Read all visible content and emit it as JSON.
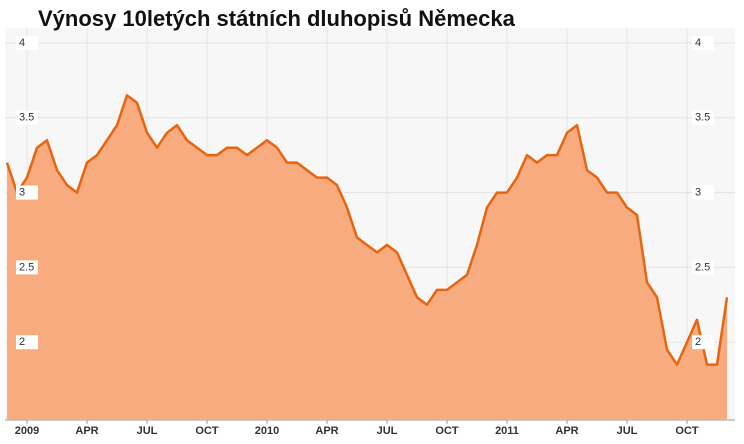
{
  "chart_data": {
    "type": "area",
    "title": "Výnosy 10letých státních dluhopisů Německa",
    "categories": [
      null,
      null,
      "2009",
      null,
      null,
      null,
      null,
      null,
      "APR",
      null,
      null,
      null,
      null,
      null,
      "JUL",
      null,
      null,
      null,
      null,
      null,
      "OCT",
      null,
      null,
      null,
      null,
      null,
      "2010",
      null,
      null,
      null,
      null,
      null,
      "APR",
      null,
      null,
      null,
      null,
      null,
      "JUL",
      null,
      null,
      null,
      null,
      null,
      "OCT",
      null,
      null,
      null,
      null,
      null,
      "2011",
      null,
      null,
      null,
      null,
      null,
      "APR",
      null,
      null,
      null,
      null,
      null,
      "JUL",
      null,
      null,
      null,
      null,
      null,
      "OCT",
      null,
      null,
      null,
      null
    ],
    "values": [
      3.2,
      3.0,
      3.1,
      3.3,
      3.35,
      3.15,
      3.05,
      3.0,
      3.2,
      3.25,
      3.35,
      3.45,
      3.65,
      3.6,
      3.4,
      3.3,
      3.4,
      3.45,
      3.35,
      3.3,
      3.25,
      3.25,
      3.3,
      3.3,
      3.25,
      3.3,
      3.35,
      3.3,
      3.2,
      3.2,
      3.15,
      3.1,
      3.1,
      3.05,
      2.9,
      2.7,
      2.65,
      2.6,
      2.65,
      2.6,
      2.45,
      2.3,
      2.25,
      2.35,
      2.35,
      2.4,
      2.45,
      2.65,
      2.9,
      3.0,
      3.0,
      3.1,
      3.25,
      3.2,
      3.25,
      3.25,
      3.4,
      3.45,
      3.15,
      3.1,
      3.0,
      3.0,
      2.9,
      2.85,
      2.4,
      2.3,
      1.95,
      1.85,
      2.0,
      2.15,
      1.85,
      1.85,
      2.3
    ],
    "color": "#e8650f",
    "fill": "#f9ab80",
    "ylim": [
      1.48,
      4.1
    ],
    "yticks": [
      2,
      2.5,
      3,
      3.5,
      4
    ],
    "grid": true
  }
}
